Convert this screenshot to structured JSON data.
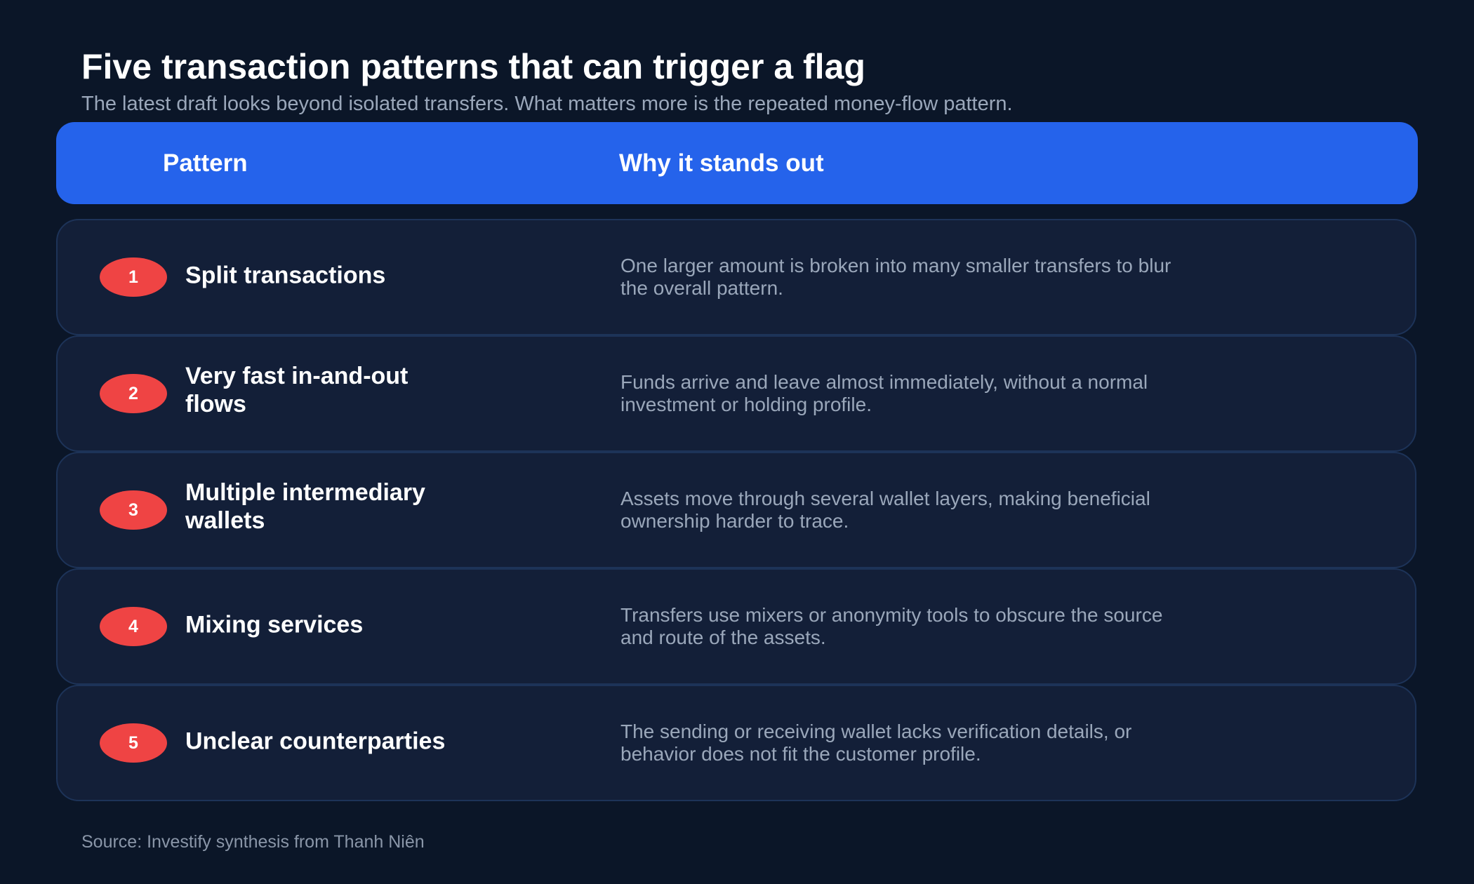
{
  "header": {
    "title": "Five transaction patterns that can trigger a flag",
    "subtitle": "The latest draft looks beyond isolated transfers. What matters more is the repeated money-flow pattern."
  },
  "table": {
    "columns": [
      "Pattern",
      "Why it stands out"
    ],
    "rows": [
      {
        "number": 1,
        "pattern": "Split transactions",
        "reason": "One larger amount is broken into many smaller transfers to blur the overall pattern."
      },
      {
        "number": 2,
        "pattern": "Very fast in-and-out flows",
        "reason": "Funds arrive and leave almost immediately, without a normal investment or holding profile."
      },
      {
        "number": 3,
        "pattern": "Multiple intermediary wallets",
        "reason": "Assets move through several wallet layers, making beneficial ownership harder to trace."
      },
      {
        "number": 4,
        "pattern": "Mixing services",
        "reason": "Transfers use mixers or anonymity tools to obscure the source and route of the assets."
      },
      {
        "number": 5,
        "pattern": "Unclear counterparties",
        "reason": "The sending or receiving wallet lacks verification details, or behavior does not fit the customer profile."
      }
    ]
  },
  "footer": {
    "source": "Source: Investify synthesis from Thanh Niên"
  }
}
